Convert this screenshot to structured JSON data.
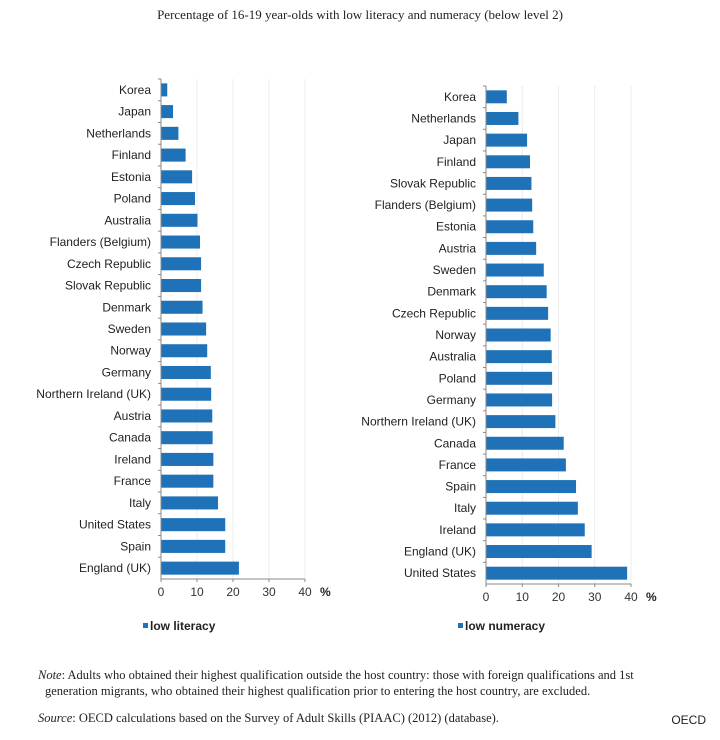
{
  "title": "Percentage of 16-19 year-olds with low literacy and numeracy (below level 2)",
  "chart_data": [
    {
      "type": "bar",
      "orientation": "horizontal",
      "categories": [
        "Korea",
        "Japan",
        "Netherlands",
        "Finland",
        "Estonia",
        "Poland",
        "Australia",
        "Flanders (Belgium)",
        "Czech Republic",
        "Slovak Republic",
        "Denmark",
        "Sweden",
        "Norway",
        "Germany",
        "Northern Ireland (UK)",
        "Austria",
        "Canada",
        "Ireland",
        "France",
        "Italy",
        "United States",
        "Spain",
        "England (UK)"
      ],
      "series": [
        {
          "name": "low literacy",
          "values": [
            1.6,
            3.2,
            4.7,
            6.7,
            8.5,
            9.3,
            10.0,
            10.7,
            11.0,
            11.0,
            11.4,
            12.4,
            12.7,
            13.7,
            13.8,
            14.1,
            14.2,
            14.4,
            14.4,
            15.7,
            17.7,
            17.7,
            21.5
          ]
        }
      ],
      "xlim": [
        0,
        40
      ],
      "xticks": [
        "0",
        "10",
        "20",
        "30",
        "40"
      ],
      "xunit": "%",
      "grid": true,
      "legend": "bottom-left",
      "color": "#1f72b8"
    },
    {
      "type": "bar",
      "orientation": "horizontal",
      "categories": [
        "Korea",
        "Netherlands",
        "Japan",
        "Finland",
        "Slovak Republic",
        "Flanders (Belgium)",
        "Estonia",
        "Austria",
        "Sweden",
        "Denmark",
        "Czech Republic",
        "Norway",
        "Australia",
        "Poland",
        "Germany",
        "Northern Ireland (UK)",
        "Canada",
        "France",
        "Spain",
        "Italy",
        "Ireland",
        "England (UK)",
        "United States"
      ],
      "series": [
        {
          "name": "low numeracy",
          "values": [
            5.6,
            8.8,
            11.2,
            12.0,
            12.4,
            12.6,
            12.9,
            13.7,
            15.8,
            16.6,
            17.0,
            17.7,
            18.0,
            18.1,
            18.1,
            19.0,
            21.3,
            21.9,
            24.7,
            25.2,
            27.1,
            29.0,
            38.8
          ]
        }
      ],
      "xlim": [
        0,
        40
      ],
      "xticks": [
        "0",
        "10",
        "20",
        "30",
        "40"
      ],
      "xunit": "%",
      "grid": true,
      "legend": "bottom-left",
      "color": "#1f72b8"
    }
  ],
  "note": {
    "label": "Note",
    "text": ": Adults who obtained their highest qualification outside the host country: those with foreign qualifications and 1st",
    "text2": "generation migrants, who obtained their highest qualification prior to entering the host country, are excluded."
  },
  "source": {
    "label": "Source",
    "text": ": OECD calculations based on the Survey of Adult Skills (PIAAC) (2012) (database)."
  },
  "credit": "OECD"
}
